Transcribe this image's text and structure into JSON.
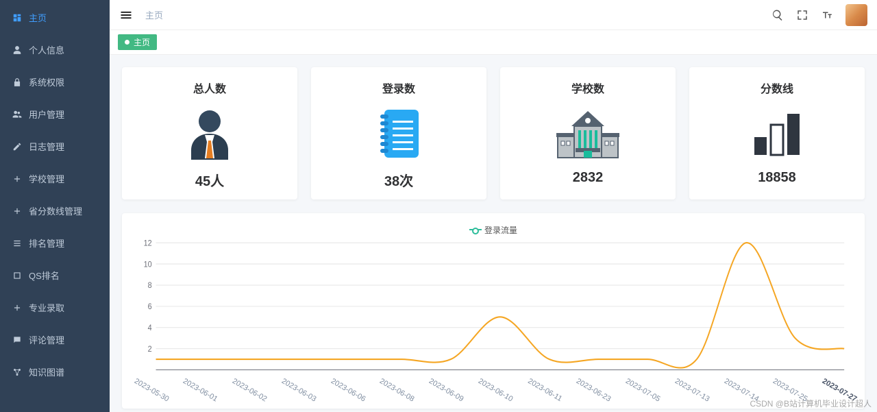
{
  "sidebar": {
    "items": [
      {
        "label": "主页",
        "icon": "dashboard-icon",
        "active": true
      },
      {
        "label": "个人信息",
        "icon": "user-icon",
        "active": false
      },
      {
        "label": "系统权限",
        "icon": "lock-icon",
        "active": false
      },
      {
        "label": "用户管理",
        "icon": "users-icon",
        "active": false
      },
      {
        "label": "日志管理",
        "icon": "pen-icon",
        "active": false
      },
      {
        "label": "学校管理",
        "icon": "plus-icon",
        "active": false
      },
      {
        "label": "省分数线管理",
        "icon": "plus-icon",
        "active": false
      },
      {
        "label": "排名管理",
        "icon": "list-icon",
        "active": false
      },
      {
        "label": "QS排名",
        "icon": "square-icon",
        "active": false
      },
      {
        "label": "专业录取",
        "icon": "plus-icon",
        "active": false
      },
      {
        "label": "评论管理",
        "icon": "chat-icon",
        "active": false
      },
      {
        "label": "知识图谱",
        "icon": "graph-icon",
        "active": false
      }
    ]
  },
  "topbar": {
    "breadcrumb": "主页"
  },
  "tag": {
    "label": "主页",
    "active_bg": "#42b983"
  },
  "cards": [
    {
      "title": "总人数",
      "value": "45人",
      "icon": "person"
    },
    {
      "title": "登录数",
      "value": "38次",
      "icon": "notebook"
    },
    {
      "title": "学校数",
      "value": "2832",
      "icon": "school"
    },
    {
      "title": "分数线",
      "value": "18858",
      "icon": "bars"
    }
  ],
  "chart": {
    "type": "line",
    "legend_label": "登录流量",
    "series_color": "#f5a623",
    "legend_marker_stroke": "#2dbd9b",
    "grid_color": "#e6e6e6",
    "axis_color": "#6e7079",
    "text_color": "#7f8da0",
    "background": "#ffffff",
    "ylim": [
      0,
      12
    ],
    "yticks": [
      2,
      4,
      6,
      8,
      10,
      12
    ],
    "line_width": 2,
    "x_labels": [
      "2023-05-30",
      "2023-06-01",
      "2023-06-02",
      "2023-06-03",
      "2023-06-06",
      "2023-06-08",
      "2023-06-09",
      "2023-06-10",
      "2023-06-11",
      "2023-06-23",
      "2023-07-05",
      "2023-07-13",
      "2023-07-14",
      "2023-07-25",
      "2023-07-27"
    ],
    "values": [
      1,
      1,
      1,
      1,
      1,
      1,
      1,
      5,
      1,
      1,
      1,
      1,
      12,
      3,
      2
    ]
  },
  "colors": {
    "sidebar_bg": "#304156",
    "sidebar_text": "#bfcbd9",
    "primary": "#409eff",
    "page_bg": "#f5f7fa",
    "card_bg": "#ffffff"
  },
  "icon_colors": {
    "person_head": "#34495e",
    "person_suit": "#2c3e50",
    "person_tie": "#e67e22",
    "person_shirt": "#ffffff",
    "notebook_body": "#29a9f3",
    "notebook_spiral": "#1e88d2",
    "notebook_line": "#ffffff",
    "school_wall": "#bdc3c7",
    "school_roof": "#556270",
    "school_door": "#1abc9c",
    "school_col": "#1abc9c",
    "bars_color": "#2f3640",
    "bars_hollow": "#ffffff"
  },
  "watermark": "CSDN @B站计算机毕业设计超人"
}
